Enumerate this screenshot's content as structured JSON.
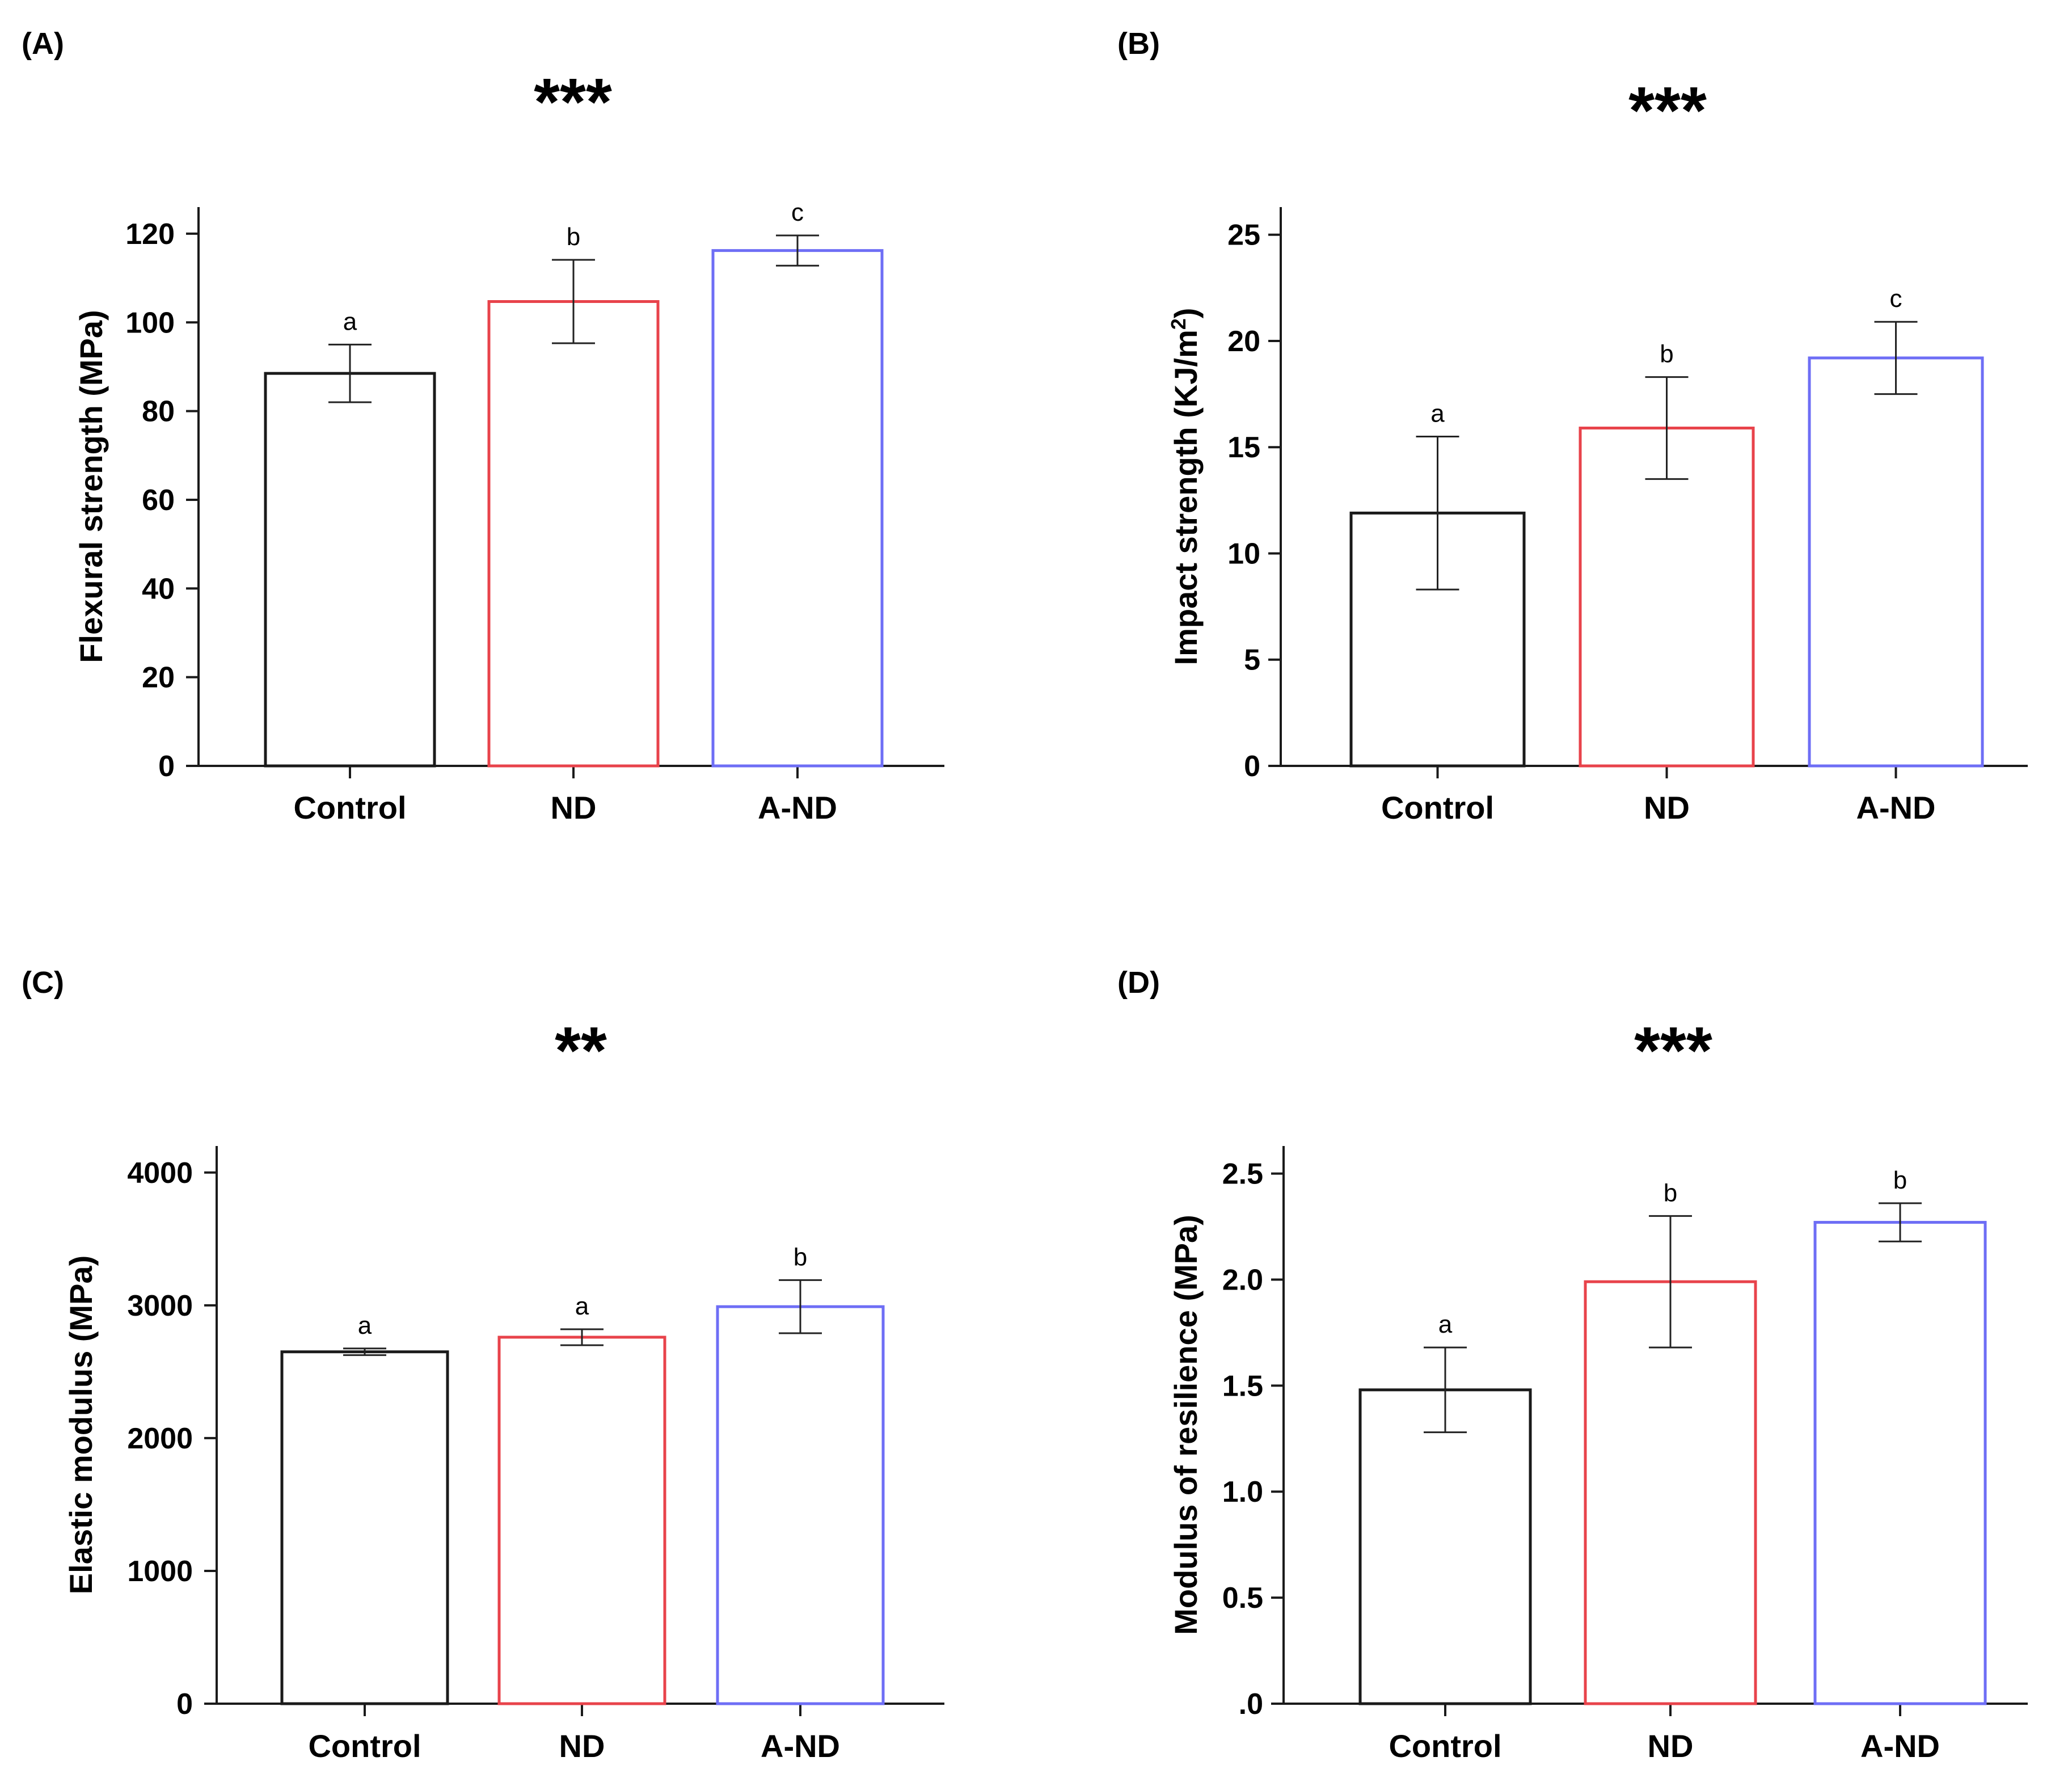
{
  "colors": {
    "Control": "#1a1a1a",
    "ND": "#e8434b",
    "A-ND": "#6e6ef5",
    "axis": "#1a1a1a"
  },
  "chart_data": [
    {
      "panel": "(A)",
      "type": "bar",
      "significance": "***",
      "ylabel": "Flexural strength (MPa)",
      "ylim": [
        0,
        126
      ],
      "yticks": [
        0,
        20,
        40,
        60,
        80,
        100,
        120
      ],
      "ytick_labels": [
        "0",
        "20",
        "40",
        "60",
        "80",
        "100",
        "120"
      ],
      "categories": [
        "Control",
        "ND",
        "A-ND"
      ],
      "values": [
        88.5,
        104.7,
        116.2
      ],
      "errors": [
        6.5,
        9.4,
        3.4
      ],
      "letters": [
        "a",
        "b",
        "c"
      ]
    },
    {
      "panel": "(B)",
      "type": "bar",
      "significance": "***",
      "ylabel_main": "Impact strength (KJ/m",
      "ylabel_sup": "2",
      "ylabel_end": ")",
      "ylim": [
        0,
        26.3
      ],
      "yticks": [
        0,
        5,
        10,
        15,
        20,
        25
      ],
      "ytick_labels": [
        "0",
        "5",
        "10",
        "15",
        "20",
        "25"
      ],
      "categories": [
        "Control",
        "ND",
        "A-ND"
      ],
      "values": [
        11.9,
        15.9,
        19.2
      ],
      "errors": [
        3.6,
        2.4,
        1.7
      ],
      "letters": [
        "a",
        "b",
        "c"
      ]
    },
    {
      "panel": "(C)",
      "type": "bar",
      "significance": "**",
      "ylabel": "Elastic modulus (MPa)",
      "ylim": [
        0,
        4200
      ],
      "yticks": [
        0,
        1000,
        2000,
        3000,
        4000
      ],
      "ytick_labels": [
        "0",
        "1000",
        "2000",
        "3000",
        "4000"
      ],
      "categories": [
        "Control",
        "ND",
        "A-ND"
      ],
      "values": [
        2650,
        2760,
        2990
      ],
      "errors": [
        25,
        60,
        200
      ],
      "letters": [
        "a",
        "a",
        "b"
      ]
    },
    {
      "panel": "(D)",
      "type": "bar",
      "significance": "***",
      "ylabel": "Modulus of resilience (MPa)",
      "ylim": [
        0,
        2.63
      ],
      "yticks": [
        0,
        0.5,
        1.0,
        1.5,
        2.0,
        2.5
      ],
      "ytick_labels": [
        ".0",
        "0.5",
        "1.0",
        "1.5",
        "2.0",
        "2.5"
      ],
      "categories": [
        "Control",
        "ND",
        "A-ND"
      ],
      "values": [
        1.48,
        1.99,
        2.27
      ],
      "errors": [
        0.2,
        0.31,
        0.09
      ],
      "letters": [
        "a",
        "b",
        "b"
      ]
    }
  ]
}
